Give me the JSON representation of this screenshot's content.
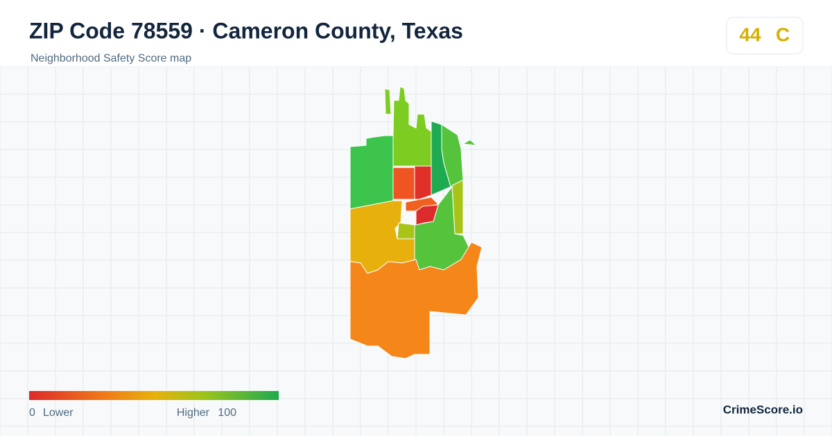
{
  "header": {
    "title": "ZIP Code 78559 · Cameron County, Texas",
    "subtitle": "Neighborhood Safety Score map"
  },
  "score": {
    "value": 44,
    "grade": "C"
  },
  "legend": {
    "min": 0,
    "min_label": "Lower",
    "max_label": "Higher",
    "max": 100
  },
  "brand": "CrimeScore.io"
}
